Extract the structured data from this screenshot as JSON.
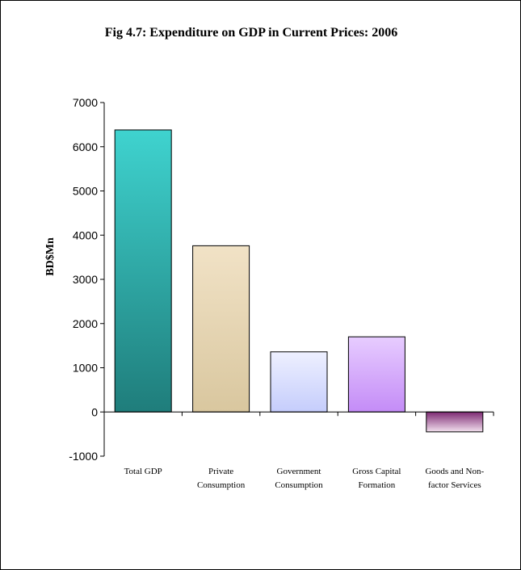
{
  "chart_data": {
    "type": "bar",
    "title": "Fig 4.7:  Expenditure on GDP in Current  Prices: 2006",
    "xlabel": "",
    "ylabel": "BD$Mn",
    "ylim": [
      -1000,
      7000
    ],
    "yticks": [
      7000,
      6000,
      5000,
      4000,
      3000,
      2000,
      1000,
      0,
      -1000
    ],
    "categories": [
      [
        "Total GDP"
      ],
      [
        "Private",
        "Consumption"
      ],
      [
        "Government",
        "Consumption"
      ],
      [
        "Gross Capital",
        "Formation"
      ],
      [
        "Goods and Non-",
        "factor Services"
      ]
    ],
    "values": [
      6380,
      3760,
      1360,
      1700,
      -450
    ],
    "grid": false,
    "legend": "none",
    "colors": [
      [
        "#3fd3cf",
        "#1f7d7b"
      ],
      [
        "#f1e2c6",
        "#d9c79f"
      ],
      [
        "#eef0ff",
        "#c5cdfc"
      ],
      [
        "#e7ccff",
        "#c48cf7"
      ],
      [
        "#7d2a73",
        "#f2e0ee"
      ]
    ]
  }
}
